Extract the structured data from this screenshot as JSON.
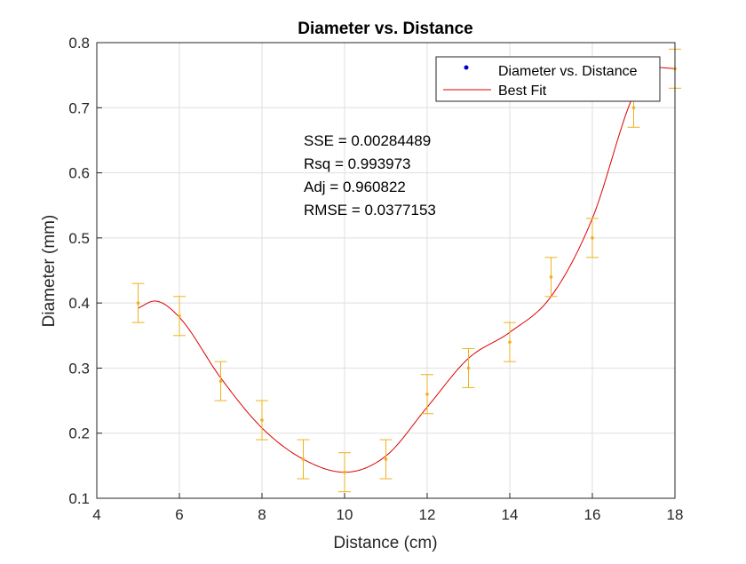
{
  "chart_data": {
    "type": "scatter",
    "title": "Diameter vs. Distance",
    "xlabel": "Distance (cm)",
    "ylabel": "Diameter (mm)",
    "xlim": [
      4,
      18
    ],
    "ylim": [
      0.1,
      0.8
    ],
    "xticks": [
      "4",
      "6",
      "8",
      "10",
      "12",
      "14",
      "16",
      "18"
    ],
    "yticks": [
      "0.1",
      "0.2",
      "0.3",
      "0.4",
      "0.5",
      "0.6",
      "0.7",
      "0.8"
    ],
    "grid": true,
    "legend_position": "top-right",
    "series": [
      {
        "name": "Diameter vs. Distance",
        "marker_color": "#0000cc",
        "data_color": "#edb120",
        "x": [
          5,
          6,
          7,
          8,
          9,
          10,
          11,
          12,
          13,
          14,
          15,
          16,
          17,
          18
        ],
        "y": [
          0.4,
          0.38,
          0.28,
          0.22,
          0.16,
          0.14,
          0.16,
          0.26,
          0.3,
          0.34,
          0.44,
          0.5,
          0.7,
          0.76
        ],
        "error": 0.03
      },
      {
        "name": "Best Fit",
        "color": "#dd0000",
        "x": [
          5,
          5.4,
          6,
          7,
          8,
          9,
          10,
          11,
          12,
          13,
          14,
          15,
          16,
          17,
          17.5,
          18
        ],
        "y": [
          0.392,
          0.403,
          0.378,
          0.285,
          0.208,
          0.16,
          0.14,
          0.165,
          0.24,
          0.315,
          0.355,
          0.41,
          0.53,
          0.72,
          0.762,
          0.76
        ]
      }
    ],
    "annotations": [
      "SSE = 0.00284489",
      "Rsq = 0.993973",
      "Adj = 0.960822",
      "RMSE = 0.0377153"
    ]
  }
}
